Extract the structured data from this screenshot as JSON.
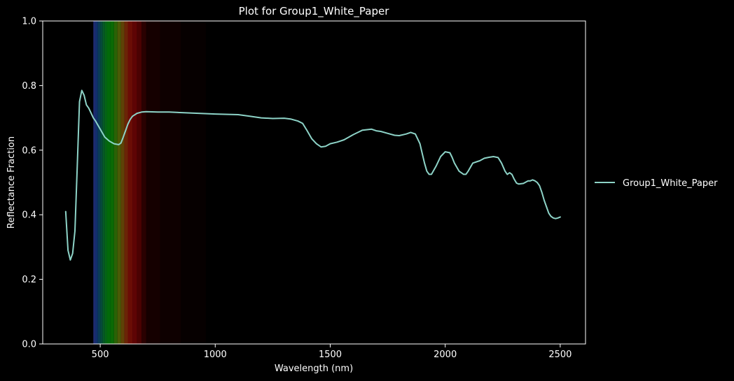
{
  "chart_data": {
    "type": "line",
    "title": "Plot for Group1_White_Paper",
    "xlabel": "Wavelength (nm)",
    "ylabel": "Reflectance Fraction",
    "xlim": [
      250,
      2610
    ],
    "ylim": [
      0.0,
      1.0
    ],
    "xticks": [
      500,
      1000,
      1500,
      2000,
      2500
    ],
    "xtick_labels": [
      "500",
      "1000",
      "1500",
      "2000",
      "2500"
    ],
    "yticks": [
      0.0,
      0.2,
      0.4,
      0.6,
      0.8,
      1.0
    ],
    "ytick_labels": [
      "0.0",
      "0.2",
      "0.4",
      "0.6",
      "0.8",
      "1.0"
    ],
    "grid": false,
    "legend_position": "right-outside",
    "background_color": "#000000",
    "series": [
      {
        "name": "Group1_White_Paper",
        "color": "#8dd3c7",
        "x": [
          350,
          360,
          370,
          380,
          390,
          400,
          410,
          420,
          430,
          440,
          450,
          460,
          470,
          480,
          500,
          520,
          540,
          560,
          580,
          590,
          600,
          610,
          620,
          630,
          640,
          660,
          680,
          700,
          750,
          800,
          900,
          1000,
          1100,
          1150,
          1200,
          1250,
          1300,
          1330,
          1360,
          1380,
          1400,
          1420,
          1440,
          1460,
          1480,
          1500,
          1530,
          1560,
          1600,
          1640,
          1680,
          1700,
          1720,
          1750,
          1780,
          1800,
          1830,
          1850,
          1870,
          1890,
          1900,
          1910,
          1920,
          1930,
          1940,
          1960,
          1980,
          2000,
          2020,
          2030,
          2040,
          2060,
          2080,
          2090,
          2100,
          2120,
          2140,
          2150,
          2170,
          2190,
          2210,
          2230,
          2245,
          2260,
          2270,
          2280,
          2290,
          2300,
          2310,
          2320,
          2340,
          2360,
          2370,
          2380,
          2390,
          2400,
          2410,
          2420,
          2430,
          2440,
          2450,
          2460,
          2470,
          2480,
          2490,
          2500
        ],
        "y": [
          0.41,
          0.29,
          0.26,
          0.28,
          0.35,
          0.55,
          0.75,
          0.785,
          0.77,
          0.74,
          0.73,
          0.715,
          0.7,
          0.69,
          0.665,
          0.64,
          0.628,
          0.62,
          0.617,
          0.622,
          0.64,
          0.66,
          0.68,
          0.695,
          0.705,
          0.714,
          0.718,
          0.719,
          0.718,
          0.718,
          0.715,
          0.712,
          0.71,
          0.705,
          0.7,
          0.698,
          0.699,
          0.696,
          0.69,
          0.683,
          0.66,
          0.635,
          0.62,
          0.61,
          0.612,
          0.62,
          0.625,
          0.632,
          0.648,
          0.662,
          0.665,
          0.66,
          0.658,
          0.652,
          0.646,
          0.645,
          0.65,
          0.655,
          0.65,
          0.62,
          0.59,
          0.56,
          0.535,
          0.525,
          0.525,
          0.55,
          0.58,
          0.595,
          0.592,
          0.578,
          0.56,
          0.535,
          0.525,
          0.525,
          0.535,
          0.56,
          0.565,
          0.567,
          0.575,
          0.578,
          0.58,
          0.577,
          0.56,
          0.535,
          0.525,
          0.53,
          0.525,
          0.51,
          0.498,
          0.495,
          0.497,
          0.505,
          0.505,
          0.508,
          0.505,
          0.5,
          0.49,
          0.47,
          0.445,
          0.425,
          0.405,
          0.395,
          0.39,
          0.388,
          0.39,
          0.393
        ]
      }
    ],
    "spectrum_bands": [
      {
        "from": 470,
        "to": 480,
        "color": "#1d2a70"
      },
      {
        "from": 480,
        "to": 490,
        "color": "#10306a"
      },
      {
        "from": 490,
        "to": 500,
        "color": "#0a3c55"
      },
      {
        "from": 500,
        "to": 510,
        "color": "#064a3c"
      },
      {
        "from": 510,
        "to": 520,
        "color": "#065a26"
      },
      {
        "from": 520,
        "to": 530,
        "color": "#056516"
      },
      {
        "from": 530,
        "to": 545,
        "color": "#036a0a"
      },
      {
        "from": 545,
        "to": 560,
        "color": "#0a6a05"
      },
      {
        "from": 560,
        "to": 575,
        "color": "#2a6205"
      },
      {
        "from": 575,
        "to": 590,
        "color": "#4a5a06"
      },
      {
        "from": 590,
        "to": 605,
        "color": "#5e4206"
      },
      {
        "from": 605,
        "to": 620,
        "color": "#6a2406"
      },
      {
        "from": 620,
        "to": 640,
        "color": "#6a0d05"
      },
      {
        "from": 640,
        "to": 660,
        "color": "#5e0404"
      },
      {
        "from": 660,
        "to": 680,
        "color": "#4a0202"
      },
      {
        "from": 680,
        "to": 700,
        "color": "#2a0101"
      },
      {
        "from": 700,
        "to": 760,
        "color": "#150000"
      },
      {
        "from": 760,
        "to": 850,
        "color": "#0e0000"
      },
      {
        "from": 850,
        "to": 960,
        "color": "#060000"
      }
    ]
  }
}
